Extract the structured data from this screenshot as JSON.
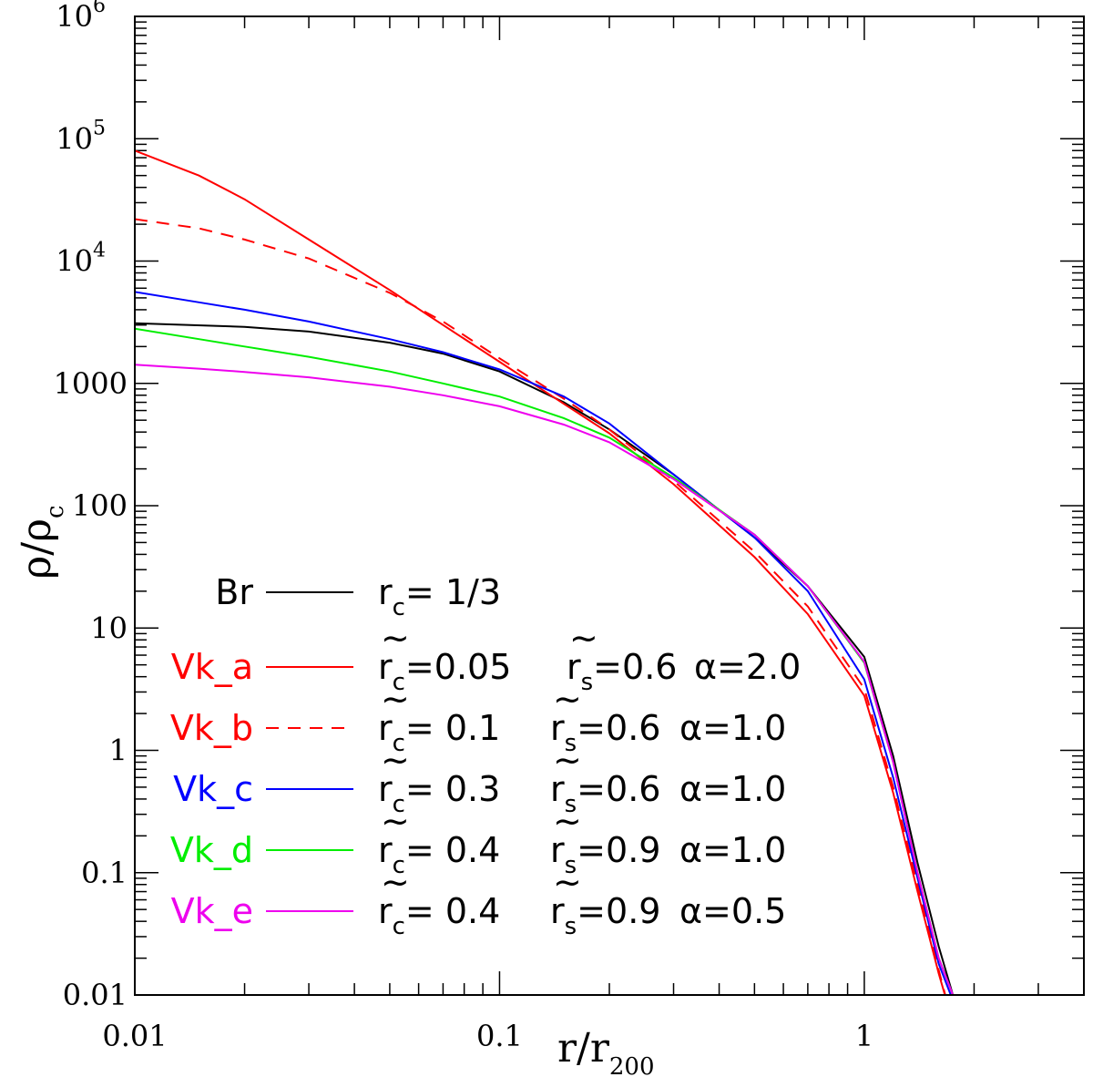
{
  "chart_data": {
    "type": "line",
    "xscale": "log",
    "yscale": "log",
    "xlim": [
      0.01,
      4
    ],
    "ylim": [
      0.01,
      1000000
    ],
    "x_ticklabels": [
      {
        "value": 0.01,
        "label": "0.01"
      },
      {
        "value": 0.1,
        "label": "0.1"
      },
      {
        "value": 1,
        "label": "1"
      }
    ],
    "y_ticklabels": [
      {
        "value": 0.01,
        "label": "0.01"
      },
      {
        "value": 0.1,
        "label": "0.1"
      },
      {
        "value": 1,
        "label": "1"
      },
      {
        "value": 10,
        "label": "10"
      },
      {
        "value": 100,
        "label": "100"
      },
      {
        "value": 1000,
        "label": "1000"
      },
      {
        "value": 10000,
        "label": "10",
        "exp": "4"
      },
      {
        "value": 100000,
        "label": "10",
        "exp": "5"
      },
      {
        "value": 1000000,
        "label": "10",
        "exp": "6"
      }
    ],
    "xlabel": {
      "main": "r/r",
      "sub": "200"
    },
    "ylabel": {
      "main": "ρ/ρ",
      "sub": "c"
    },
    "series": [
      {
        "name": "Br",
        "color": "#000000",
        "dash": false,
        "params": {
          "rc": "r",
          "rc_sub": "c",
          "rc_val": "= 1/3"
        },
        "x": [
          0.01,
          0.02,
          0.03,
          0.05,
          0.07,
          0.1,
          0.15,
          0.2,
          0.3,
          0.5,
          0.7,
          1.0,
          1.2,
          1.4,
          1.6,
          1.75
        ],
        "y": [
          3100,
          2900,
          2650,
          2150,
          1750,
          1250,
          700,
          420,
          180,
          55,
          22,
          5.8,
          0.9,
          0.12,
          0.025,
          0.01
        ]
      },
      {
        "name": "Vk_a",
        "color": "#ff0000",
        "dash": false,
        "params": {
          "rc": "r",
          "rc_sub": "c",
          "rc_val": "=0.05",
          "rs": "r",
          "rs_sub": "s",
          "rs_val": "=0.6",
          "alpha": "α=2.0"
        },
        "x": [
          0.01,
          0.015,
          0.02,
          0.03,
          0.05,
          0.07,
          0.1,
          0.15,
          0.2,
          0.3,
          0.5,
          0.7,
          1.0,
          1.2,
          1.4,
          1.6,
          1.7
        ],
        "y": [
          80000,
          50000,
          32000,
          15000,
          5800,
          3000,
          1500,
          680,
          390,
          150,
          38,
          13,
          2.8,
          0.45,
          0.07,
          0.015,
          0.008
        ]
      },
      {
        "name": "Vk_b",
        "color": "#ff0000",
        "dash": true,
        "params": {
          "rc": "r",
          "rc_sub": "c",
          "rc_val": "= 0.1",
          "rs": "r",
          "rs_sub": "s",
          "rs_val": "=0.6",
          "alpha": "α=1.0"
        },
        "x": [
          0.01,
          0.015,
          0.02,
          0.03,
          0.05,
          0.07,
          0.1,
          0.15,
          0.2,
          0.3,
          0.5,
          0.7,
          1.0,
          1.2,
          1.4,
          1.6,
          1.7
        ],
        "y": [
          22000,
          18500,
          15000,
          10500,
          5500,
          3200,
          1600,
          750,
          420,
          160,
          42,
          15,
          3.2,
          0.5,
          0.08,
          0.016,
          0.008
        ]
      },
      {
        "name": "Vk_c",
        "color": "#0000ff",
        "dash": false,
        "params": {
          "rc": "r",
          "rc_sub": "c",
          "rc_val": "= 0.3",
          "rs": "r",
          "rs_sub": "s",
          "rs_val": "=0.6",
          "alpha": "α=1.0"
        },
        "x": [
          0.01,
          0.015,
          0.02,
          0.03,
          0.05,
          0.07,
          0.1,
          0.15,
          0.2,
          0.3,
          0.5,
          0.7,
          1.0,
          1.2,
          1.4,
          1.6,
          1.75
        ],
        "y": [
          5600,
          4600,
          4000,
          3200,
          2300,
          1800,
          1300,
          780,
          470,
          180,
          55,
          20,
          3.8,
          0.6,
          0.09,
          0.018,
          0.009
        ]
      },
      {
        "name": "Vk_d",
        "color": "#00ee00",
        "dash": false,
        "params": {
          "rc": "r",
          "rc_sub": "c",
          "rc_val": "= 0.4",
          "rs": "r",
          "rs_sub": "s",
          "rs_val": "=0.9",
          "alpha": "α=1.0"
        },
        "x": [
          0.01,
          0.015,
          0.02,
          0.03,
          0.05,
          0.07,
          0.1,
          0.15,
          0.2,
          0.3,
          0.5,
          0.7,
          1.0,
          1.2,
          1.4,
          1.6,
          1.75
        ],
        "y": [
          2800,
          2300,
          2000,
          1650,
          1250,
          1000,
          780,
          520,
          360,
          170,
          58,
          22,
          5.2,
          0.8,
          0.1,
          0.02,
          0.01
        ]
      },
      {
        "name": "Vk_e",
        "color": "#ee00ee",
        "dash": false,
        "params": {
          "rc": "r",
          "rc_sub": "c",
          "rc_val": "= 0.4",
          "rs": "r",
          "rs_sub": "s",
          "rs_val": "=0.9",
          "alpha": "α=0.5"
        },
        "x": [
          0.01,
          0.015,
          0.02,
          0.03,
          0.05,
          0.07,
          0.1,
          0.15,
          0.2,
          0.3,
          0.5,
          0.7,
          1.0,
          1.2,
          1.4,
          1.6,
          1.75
        ],
        "y": [
          1420,
          1320,
          1240,
          1120,
          940,
          800,
          650,
          460,
          330,
          165,
          58,
          22,
          5.3,
          0.8,
          0.1,
          0.02,
          0.01
        ]
      }
    ]
  }
}
